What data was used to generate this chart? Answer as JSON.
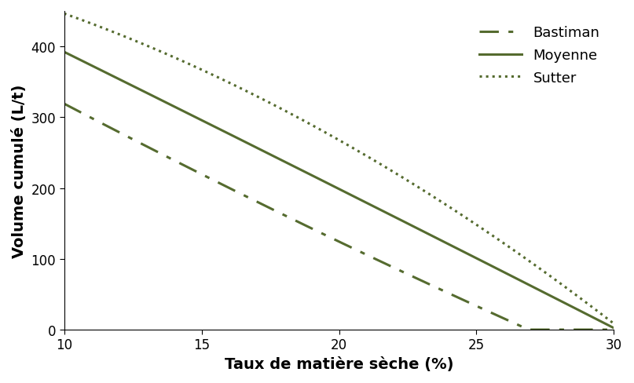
{
  "color": "#556B2F",
  "xlabel": "Taux de matière sèche (%)",
  "ylabel": "Volume cumulé (L/t)",
  "xlim": [
    10,
    30
  ],
  "ylim": [
    0,
    450
  ],
  "yticks": [
    0,
    100,
    200,
    300,
    400
  ],
  "xticks": [
    10,
    15,
    20,
    25,
    30
  ],
  "legend_labels": [
    "Bastiman",
    "Moyenne",
    "Sutter"
  ],
  "bastiman_pts_x": [
    10,
    15,
    20,
    25,
    27.5
  ],
  "bastiman_pts_y": [
    315,
    228,
    125,
    18,
    0
  ],
  "moyenne_pts_x": [
    10,
    15,
    20,
    25,
    30
  ],
  "moyenne_pts_y": [
    390,
    300,
    200,
    95,
    5
  ],
  "sutter_pts_x": [
    10,
    15,
    20,
    25,
    30
  ],
  "sutter_pts_y": [
    450,
    360,
    268,
    155,
    5
  ],
  "linewidth": 2.2,
  "xlabel_fontsize": 14,
  "ylabel_fontsize": 14,
  "tick_fontsize": 12,
  "legend_fontsize": 13,
  "background_color": "#ffffff"
}
